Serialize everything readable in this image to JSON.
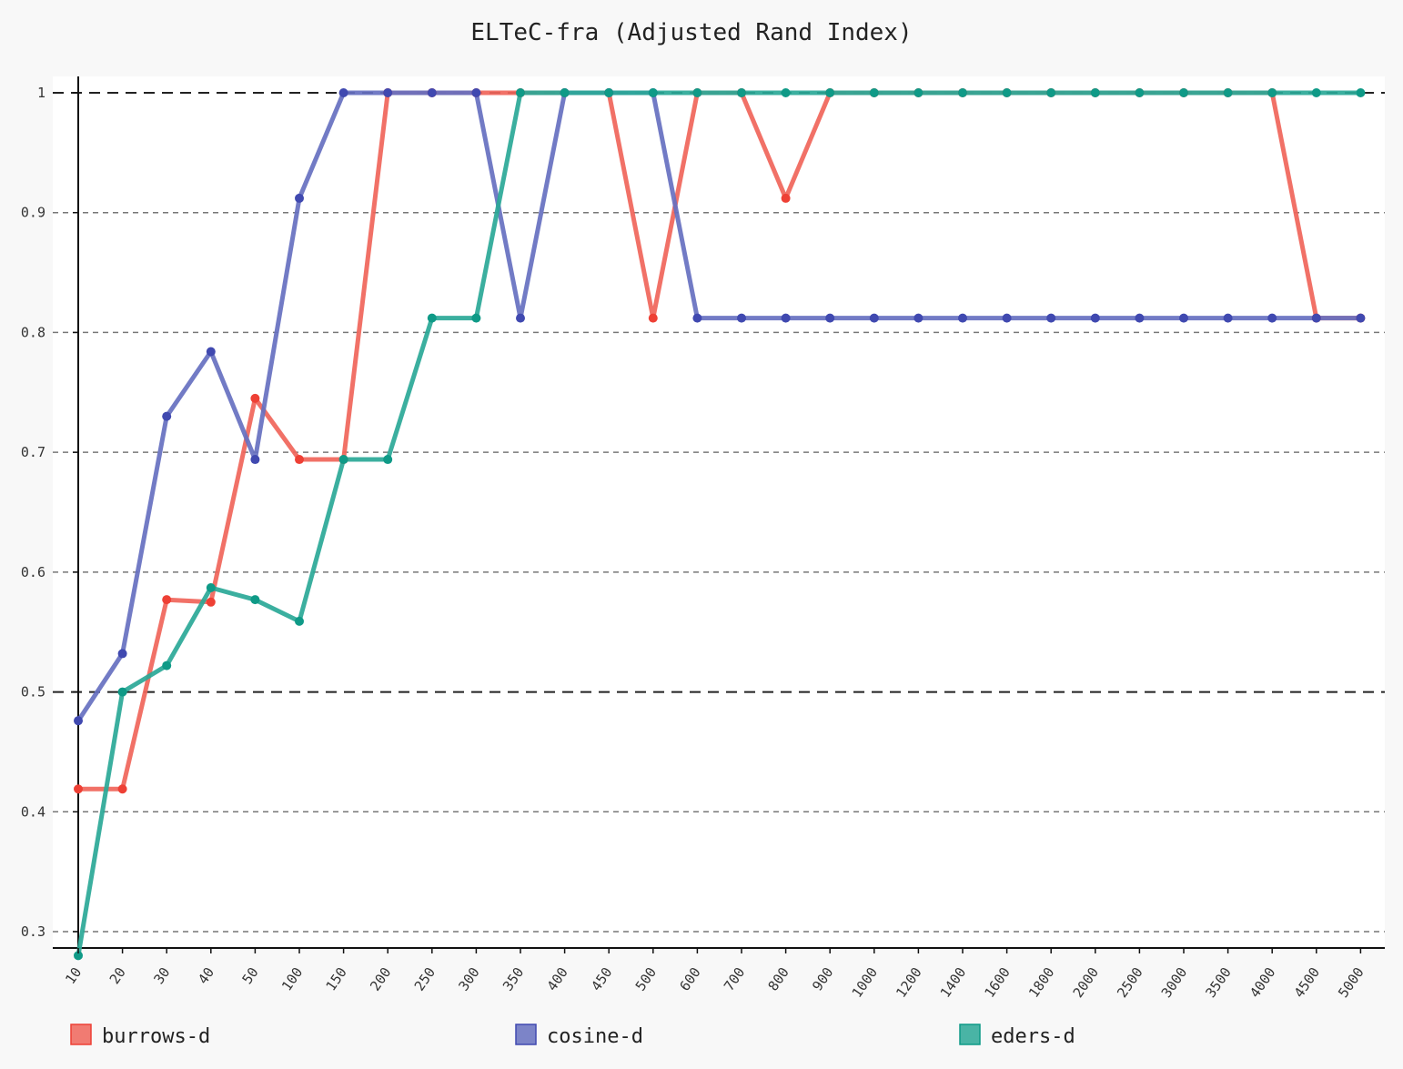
{
  "chart_data": {
    "type": "line",
    "title": "ELTeC-fra (Adjusted Rand Index)",
    "xlabel": "",
    "ylabel": "",
    "categories": [
      "10",
      "20",
      "30",
      "40",
      "50",
      "100",
      "150",
      "200",
      "250",
      "300",
      "350",
      "400",
      "450",
      "500",
      "600",
      "700",
      "800",
      "900",
      "1000",
      "1200",
      "1400",
      "1600",
      "1800",
      "2000",
      "2500",
      "3000",
      "3500",
      "4000",
      "4500",
      "5000"
    ],
    "ylim": [
      0.286,
      1.013
    ],
    "yticks": [
      0.3,
      0.4,
      0.5,
      0.6,
      0.7,
      0.8,
      0.9,
      1
    ],
    "ytick_labels": [
      "0.3",
      "0.4",
      "0.5",
      "0.6",
      "0.7",
      "0.8",
      "0.9",
      "1"
    ],
    "grid": true,
    "legend_position": "bottom",
    "series": [
      {
        "name": "burrows-d",
        "color": "#f0655a",
        "marker_color": "#ee4035",
        "values": [
          0.419,
          0.419,
          0.577,
          0.575,
          0.745,
          0.694,
          0.694,
          1,
          1,
          1,
          1,
          1,
          1,
          0.812,
          1,
          1,
          0.912,
          1,
          1,
          1,
          1,
          1,
          1,
          1,
          1,
          1,
          1,
          1,
          0.812,
          0.812
        ]
      },
      {
        "name": "cosine-d",
        "color": "#6670c0",
        "marker_color": "#4049b0",
        "values": [
          0.476,
          0.532,
          0.73,
          0.784,
          0.694,
          0.912,
          1,
          1,
          1,
          1,
          0.812,
          1,
          1,
          1,
          0.812,
          0.812,
          0.812,
          0.812,
          0.812,
          0.812,
          0.812,
          0.812,
          0.812,
          0.812,
          0.812,
          0.812,
          0.812,
          0.812,
          0.812,
          0.812
        ]
      },
      {
        "name": "eders-d",
        "color": "#2aa897",
        "marker_color": "#0f9a87",
        "values": [
          0.28,
          0.5,
          0.522,
          0.587,
          0.577,
          0.559,
          0.694,
          0.694,
          0.812,
          0.812,
          1,
          1,
          1,
          1,
          1,
          1,
          1,
          1,
          1,
          1,
          1,
          1,
          1,
          1,
          1,
          1,
          1,
          1,
          1,
          1
        ]
      }
    ]
  }
}
